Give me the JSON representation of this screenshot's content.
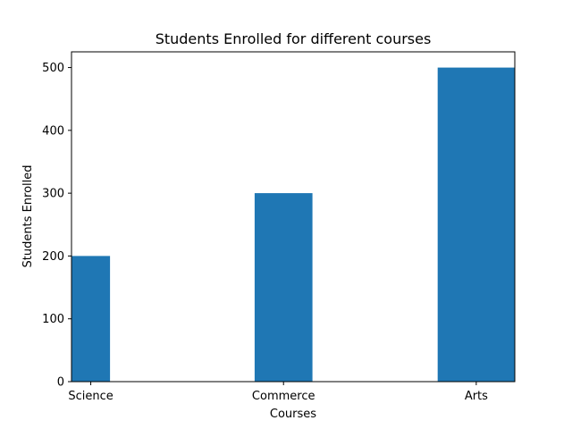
{
  "chart_data": {
    "type": "bar",
    "title": "Students Enrolled for different courses",
    "xlabel": "Courses",
    "ylabel": "Students Enrolled",
    "categories": [
      "Science",
      "Commerce",
      "Arts"
    ],
    "x_positions": [
      0,
      1,
      2
    ],
    "bar_widths": [
      0.2,
      0.3,
      0.4
    ],
    "values": [
      200,
      300,
      500
    ],
    "xlim": [
      -0.1,
      2.2
    ],
    "ylim": [
      0,
      525
    ],
    "yticks": [
      0,
      100,
      200,
      300,
      400,
      500
    ],
    "grid": false,
    "legend": "none",
    "bar_color": "#1f77b4"
  }
}
